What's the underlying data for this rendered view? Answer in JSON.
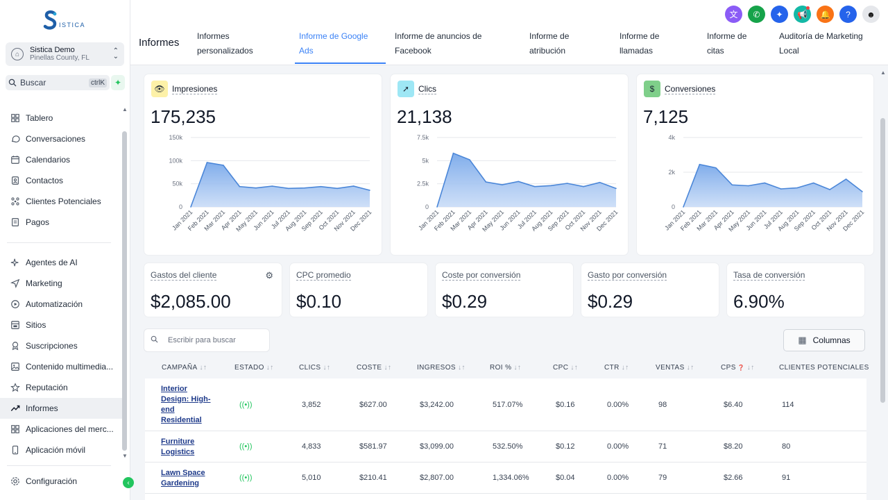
{
  "brand": {
    "name": "ISTICA"
  },
  "account": {
    "name": "Sistica Demo",
    "location": "Pinellas County, FL"
  },
  "sidebar_search": {
    "label": "Buscar",
    "shortcut": "ctrlK"
  },
  "nav_top": [
    {
      "label": "Tablero",
      "icon": "grid-icon"
    },
    {
      "label": "Conversaciones",
      "icon": "chat-icon"
    },
    {
      "label": "Calendarios",
      "icon": "calendar-icon"
    },
    {
      "label": "Contactos",
      "icon": "contacts-icon"
    },
    {
      "label": "Clientes Potenciales",
      "icon": "funnel-icon"
    },
    {
      "label": "Pagos",
      "icon": "payments-icon"
    }
  ],
  "nav_bottom": [
    {
      "label": "Agentes de AI",
      "icon": "sparkle-icon"
    },
    {
      "label": "Marketing",
      "icon": "send-icon"
    },
    {
      "label": "Automatización",
      "icon": "automation-icon"
    },
    {
      "label": "Sitios",
      "icon": "sites-icon"
    },
    {
      "label": "Suscripciones",
      "icon": "membership-icon"
    },
    {
      "label": "Contenido multimedia...",
      "icon": "media-icon"
    },
    {
      "label": "Reputación",
      "icon": "star-icon"
    },
    {
      "label": "Informes",
      "icon": "trend-icon",
      "active": true
    },
    {
      "label": "Aplicaciones del merc...",
      "icon": "apps-icon"
    },
    {
      "label": "Aplicación móvil",
      "icon": "mobile-icon"
    }
  ],
  "settings_label": "Configuración",
  "header": {
    "title": "Informes",
    "tabs": [
      {
        "line1": "Informes",
        "line2": "personalizados"
      },
      {
        "line1": "Informe de Google",
        "line2": "Ads",
        "active": true
      },
      {
        "line1": "Informe de anuncios de",
        "line2": "Facebook"
      },
      {
        "line1": "Informe de",
        "line2": "atribución"
      },
      {
        "line1": "Informe de",
        "line2": "llamadas"
      },
      {
        "line1": "Informe de",
        "line2": "citas"
      },
      {
        "line1": "Auditoría de Marketing",
        "line2": "Local"
      }
    ],
    "icons": [
      {
        "name": "translate-icon",
        "glyph": "文",
        "color": "#8b5cf6"
      },
      {
        "name": "phone-icon",
        "glyph": "✆",
        "color": "#16a34a"
      },
      {
        "name": "satellite-icon",
        "glyph": "✦",
        "color": "#2563eb"
      },
      {
        "name": "megaphone-icon",
        "glyph": "📢",
        "color": "#14b8a6"
      },
      {
        "name": "bell-icon",
        "glyph": "🔔",
        "color": "#f97316"
      },
      {
        "name": "help-icon",
        "glyph": "?",
        "color": "#2563eb"
      }
    ]
  },
  "metrics": {
    "impressions": {
      "label": "Impresiones",
      "value": "175,235"
    },
    "clicks": {
      "label": "Clics",
      "value": "21,138"
    },
    "conversions": {
      "label": "Conversiones",
      "value": "7,125"
    }
  },
  "chart_data": [
    {
      "type": "area",
      "title": "Impresiones",
      "x": [
        "Jan 2021",
        "Feb 2021",
        "Mar 2021",
        "Apr 2021",
        "May 2021",
        "Jun 2021",
        "Jul 2021",
        "Aug 2021",
        "Sep 2021",
        "Oct 2021",
        "Nov 2021",
        "Dec 2021"
      ],
      "values": [
        0,
        96000,
        90000,
        44000,
        41000,
        45000,
        40000,
        41000,
        44000,
        40000,
        45000,
        36000
      ],
      "yticks": [
        "0",
        "50k",
        "100k",
        "150k"
      ],
      "ylim": [
        0,
        150000
      ],
      "color": "#4a86d8"
    },
    {
      "type": "area",
      "title": "Clics",
      "x": [
        "Jan 2021",
        "Feb 2021",
        "Mar 2021",
        "Apr 2021",
        "May 2021",
        "Jun 2021",
        "Jul 2021",
        "Aug 2021",
        "Sep 2021",
        "Oct 2021",
        "Nov 2021",
        "Dec 2021"
      ],
      "values": [
        0,
        5800,
        5100,
        2700,
        2400,
        2750,
        2200,
        2300,
        2550,
        2200,
        2650,
        2000
      ],
      "yticks": [
        "0",
        "2.5k",
        "5k",
        "7.5k"
      ],
      "ylim": [
        0,
        7500
      ],
      "color": "#4a86d8"
    },
    {
      "type": "area",
      "title": "Conversiones",
      "x": [
        "Jan 2021",
        "Feb 2021",
        "Mar 2021",
        "Apr 2021",
        "May 2021",
        "Jun 2021",
        "Jul 2021",
        "Aug 2021",
        "Sep 2021",
        "Oct 2021",
        "Nov 2021",
        "Dec 2021"
      ],
      "values": [
        0,
        2450,
        2250,
        1270,
        1220,
        1380,
        1040,
        1100,
        1380,
        1000,
        1600,
        880
      ],
      "yticks": [
        "0",
        "2k",
        "4k"
      ],
      "ylim": [
        0,
        4000
      ],
      "color": "#4a86d8"
    }
  ],
  "kpis": [
    {
      "label": "Gastos del cliente",
      "value": "$2,085.00",
      "has_settings": true
    },
    {
      "label": "CPC promedio",
      "value": "$0.10"
    },
    {
      "label": "Coste por conversión",
      "value": "$0.29"
    },
    {
      "label": "Gasto por conversión",
      "value": "$0.29"
    },
    {
      "label": "Tasa de conversión",
      "value": "6.90%"
    }
  ],
  "table": {
    "search_placeholder": "Escribir para buscar",
    "columns_button": "Columnas",
    "headers": [
      "CAMPAÑA",
      "ESTADO",
      "CLICS",
      "COSTE",
      "INGRESOS",
      "ROI %",
      "CPC",
      "CTR",
      "VENTAS",
      "CPS",
      "CLIENTES POTENCIALES"
    ],
    "rows": [
      [
        "Interior Design: High-end Residential",
        "((•))",
        "3,852",
        "$627.00",
        "$3,242.00",
        "517.07%",
        "$0.16",
        "0.00%",
        "98",
        "$6.40",
        "114"
      ],
      [
        "Furniture Logistics",
        "((•))",
        "4,833",
        "$581.97",
        "$3,099.00",
        "532.50%",
        "$0.12",
        "0.00%",
        "71",
        "$8.20",
        "80"
      ],
      [
        "Lawn Space Gardening",
        "((•))",
        "5,010",
        "$210.41",
        "$2,807.00",
        "1,334.06%",
        "$0.04",
        "0.00%",
        "79",
        "$2.66",
        "91"
      ]
    ]
  }
}
